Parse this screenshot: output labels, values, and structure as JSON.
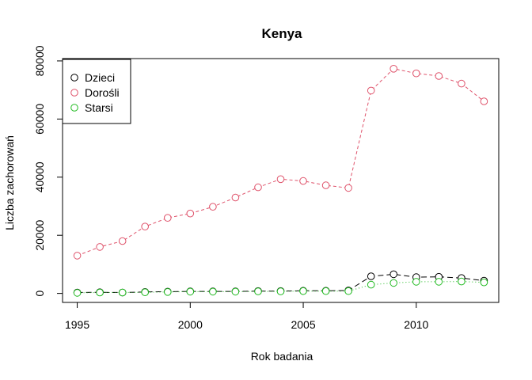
{
  "chart_data": {
    "type": "line",
    "title": "Kenya",
    "xlabel": "Rok badania",
    "ylabel": "Liczba zachorowań",
    "xlim": [
      1994.35,
      2013.65
    ],
    "ylim": [
      -3100,
      80800
    ],
    "x_ticks": [
      1995,
      2000,
      2005,
      2010
    ],
    "y_ticks": [
      0,
      20000,
      40000,
      60000,
      80000
    ],
    "x_tick_labels": [
      "1995",
      "2000",
      "2005",
      "2010"
    ],
    "y_tick_labels": [
      "0",
      "20000",
      "40000",
      "60000",
      "80000"
    ],
    "legend_position": "top-left",
    "grid": false,
    "x": [
      1995,
      1996,
      1997,
      1998,
      1999,
      2000,
      2001,
      2002,
      2003,
      2004,
      2005,
      2006,
      2007,
      2008,
      2009,
      2010,
      2011,
      2012,
      2013
    ],
    "series": [
      {
        "name": "Dzieci",
        "color": "#000000",
        "line_style": "longdash",
        "values": [
          300,
          400,
          300,
          500,
          600,
          700,
          700,
          700,
          800,
          800,
          900,
          900,
          1000,
          5900,
          6600,
          5600,
          5700,
          5300,
          4400
        ]
      },
      {
        "name": "Dorośli",
        "color": "#DF536B",
        "line_style": "dashed",
        "values": [
          13000,
          16000,
          18000,
          23000,
          26000,
          27500,
          29800,
          33000,
          36500,
          39300,
          38700,
          37200,
          36300,
          69800,
          77300,
          75700,
          74800,
          72200,
          66100
        ]
      },
      {
        "name": "Starsi",
        "color": "#22BB22",
        "line_style": "dotted",
        "values": [
          200,
          300,
          300,
          400,
          500,
          600,
          600,
          600,
          700,
          700,
          800,
          800,
          800,
          3000,
          3600,
          4000,
          4000,
          4100,
          3800
        ]
      }
    ]
  }
}
